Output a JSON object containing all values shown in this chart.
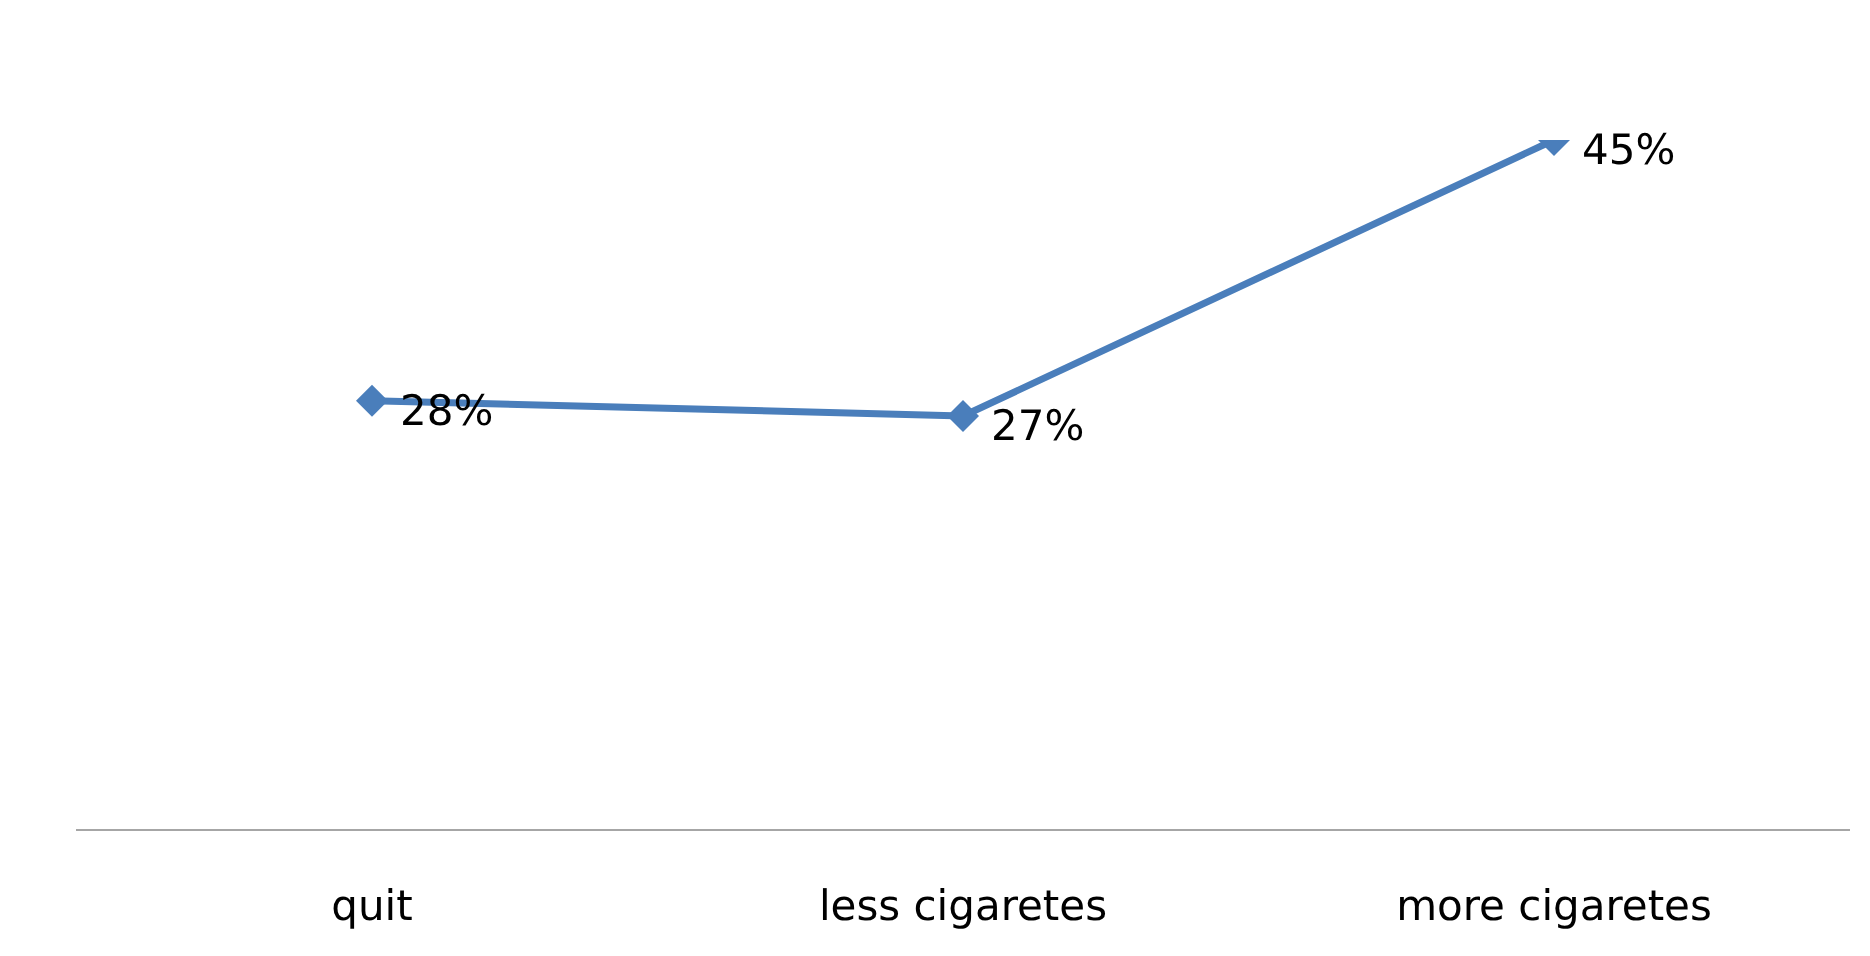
{
  "chart_data": {
    "type": "line",
    "categories": [
      "quit",
      "less cigaretes",
      "more cigaretes"
    ],
    "series": [
      {
        "color": "#4a7ebb",
        "values": [
          28,
          27,
          45
        ],
        "value_labels": [
          "28%",
          "27%",
          "45%"
        ]
      }
    ],
    "tick_labels": "x",
    "marker": "diamond",
    "line_style": "solid"
  }
}
